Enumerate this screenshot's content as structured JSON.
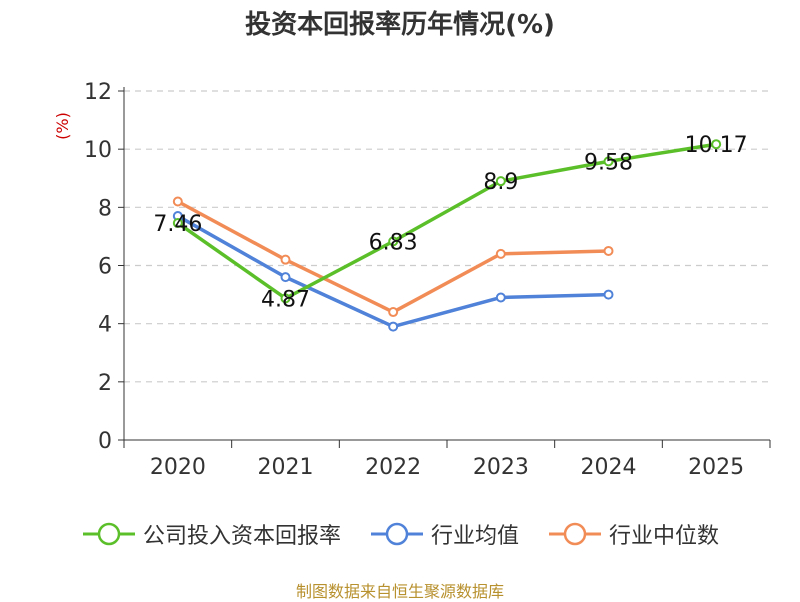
{
  "chart_data": {
    "type": "line",
    "title": "投资本回报率历年情况(%)",
    "ylabel": "(%)",
    "xlabel": "",
    "categories": [
      "2020",
      "2021",
      "2022",
      "2023",
      "2024",
      "2025"
    ],
    "ylim": [
      0,
      12
    ],
    "yticks": [
      0,
      2,
      4,
      6,
      8,
      10,
      12
    ],
    "grid": true,
    "legend_position": "bottom",
    "series": [
      {
        "name": "公司投入资本回报率",
        "color": "#5bbf2a",
        "values": [
          7.46,
          4.87,
          6.83,
          8.9,
          9.58,
          10.17
        ],
        "labels": [
          "7.46",
          "4.87",
          "6.83",
          "8.9",
          "9.58",
          "10.17"
        ]
      },
      {
        "name": "行业均值",
        "color": "#4f82d8",
        "values": [
          7.7,
          5.6,
          3.9,
          4.9,
          5.0,
          null
        ]
      },
      {
        "name": "行业中位数",
        "color": "#f28c57",
        "values": [
          8.2,
          6.2,
          4.4,
          6.4,
          6.5,
          null
        ]
      }
    ]
  },
  "source_text": "制图数据来自恒生聚源数据库"
}
